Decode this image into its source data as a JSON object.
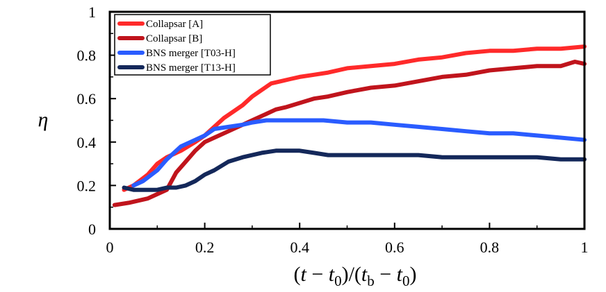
{
  "chart_data": {
    "type": "line",
    "title": "",
    "xlabel_parts": [
      "(",
      "t",
      " − ",
      "t",
      "0",
      ")/(",
      "t",
      "b",
      " − ",
      "t",
      "0",
      ")"
    ],
    "ylabel": "η",
    "xlim": [
      0,
      1
    ],
    "ylim": [
      0,
      1
    ],
    "xticks": [
      0,
      0.2,
      0.4,
      0.6,
      0.8,
      1
    ],
    "xtick_labels": [
      "0",
      "0.2",
      "0.4",
      "0.6",
      "0.8",
      "1"
    ],
    "yticks": [
      0,
      0.2,
      0.4,
      0.6,
      0.8,
      1
    ],
    "ytick_labels": [
      "0",
      "0.2",
      "0.4",
      "0.6",
      "0.8",
      "1"
    ],
    "legend_position": "top-left",
    "series": [
      {
        "name": "Collapsar [A]",
        "color": "#ff2a2a",
        "x": [
          0.03,
          0.05,
          0.08,
          0.1,
          0.12,
          0.15,
          0.18,
          0.2,
          0.22,
          0.24,
          0.26,
          0.28,
          0.3,
          0.32,
          0.34,
          0.36,
          0.38,
          0.4,
          0.43,
          0.46,
          0.5,
          0.55,
          0.6,
          0.65,
          0.7,
          0.75,
          0.8,
          0.85,
          0.9,
          0.95,
          1.0
        ],
        "values": [
          0.18,
          0.2,
          0.25,
          0.3,
          0.33,
          0.36,
          0.4,
          0.43,
          0.47,
          0.51,
          0.54,
          0.57,
          0.61,
          0.64,
          0.67,
          0.68,
          0.69,
          0.7,
          0.71,
          0.72,
          0.74,
          0.75,
          0.76,
          0.78,
          0.79,
          0.81,
          0.82,
          0.82,
          0.83,
          0.83,
          0.84
        ]
      },
      {
        "name": "Collapsar [B]",
        "color": "#c0141c",
        "x": [
          0.01,
          0.04,
          0.08,
          0.1,
          0.12,
          0.14,
          0.16,
          0.18,
          0.2,
          0.22,
          0.25,
          0.28,
          0.3,
          0.33,
          0.35,
          0.37,
          0.4,
          0.43,
          0.46,
          0.5,
          0.55,
          0.6,
          0.65,
          0.7,
          0.75,
          0.8,
          0.85,
          0.9,
          0.95,
          0.98,
          1.0
        ],
        "values": [
          0.11,
          0.12,
          0.14,
          0.16,
          0.18,
          0.26,
          0.31,
          0.36,
          0.4,
          0.42,
          0.45,
          0.48,
          0.5,
          0.53,
          0.55,
          0.56,
          0.58,
          0.6,
          0.61,
          0.63,
          0.65,
          0.66,
          0.68,
          0.7,
          0.71,
          0.73,
          0.74,
          0.75,
          0.75,
          0.77,
          0.76
        ]
      },
      {
        "name": "BNS merger [T03-H]",
        "color": "#2a5cff",
        "x": [
          0.05,
          0.07,
          0.1,
          0.12,
          0.15,
          0.18,
          0.2,
          0.22,
          0.25,
          0.28,
          0.3,
          0.33,
          0.36,
          0.4,
          0.45,
          0.5,
          0.55,
          0.6,
          0.65,
          0.7,
          0.75,
          0.8,
          0.85,
          0.9,
          0.95,
          1.0
        ],
        "values": [
          0.2,
          0.22,
          0.27,
          0.32,
          0.38,
          0.41,
          0.43,
          0.46,
          0.47,
          0.48,
          0.49,
          0.5,
          0.5,
          0.5,
          0.5,
          0.49,
          0.49,
          0.48,
          0.47,
          0.46,
          0.45,
          0.44,
          0.44,
          0.43,
          0.42,
          0.41
        ]
      },
      {
        "name": "BNS merger [T13-H]",
        "color": "#14285a",
        "x": [
          0.03,
          0.05,
          0.08,
          0.1,
          0.12,
          0.14,
          0.16,
          0.18,
          0.2,
          0.22,
          0.25,
          0.28,
          0.3,
          0.32,
          0.35,
          0.38,
          0.4,
          0.43,
          0.46,
          0.5,
          0.55,
          0.6,
          0.65,
          0.7,
          0.75,
          0.8,
          0.85,
          0.9,
          0.95,
          1.0
        ],
        "values": [
          0.19,
          0.18,
          0.18,
          0.18,
          0.19,
          0.19,
          0.2,
          0.22,
          0.25,
          0.27,
          0.31,
          0.33,
          0.34,
          0.35,
          0.36,
          0.36,
          0.36,
          0.35,
          0.34,
          0.34,
          0.34,
          0.34,
          0.34,
          0.33,
          0.33,
          0.33,
          0.33,
          0.33,
          0.32,
          0.32
        ]
      }
    ]
  }
}
